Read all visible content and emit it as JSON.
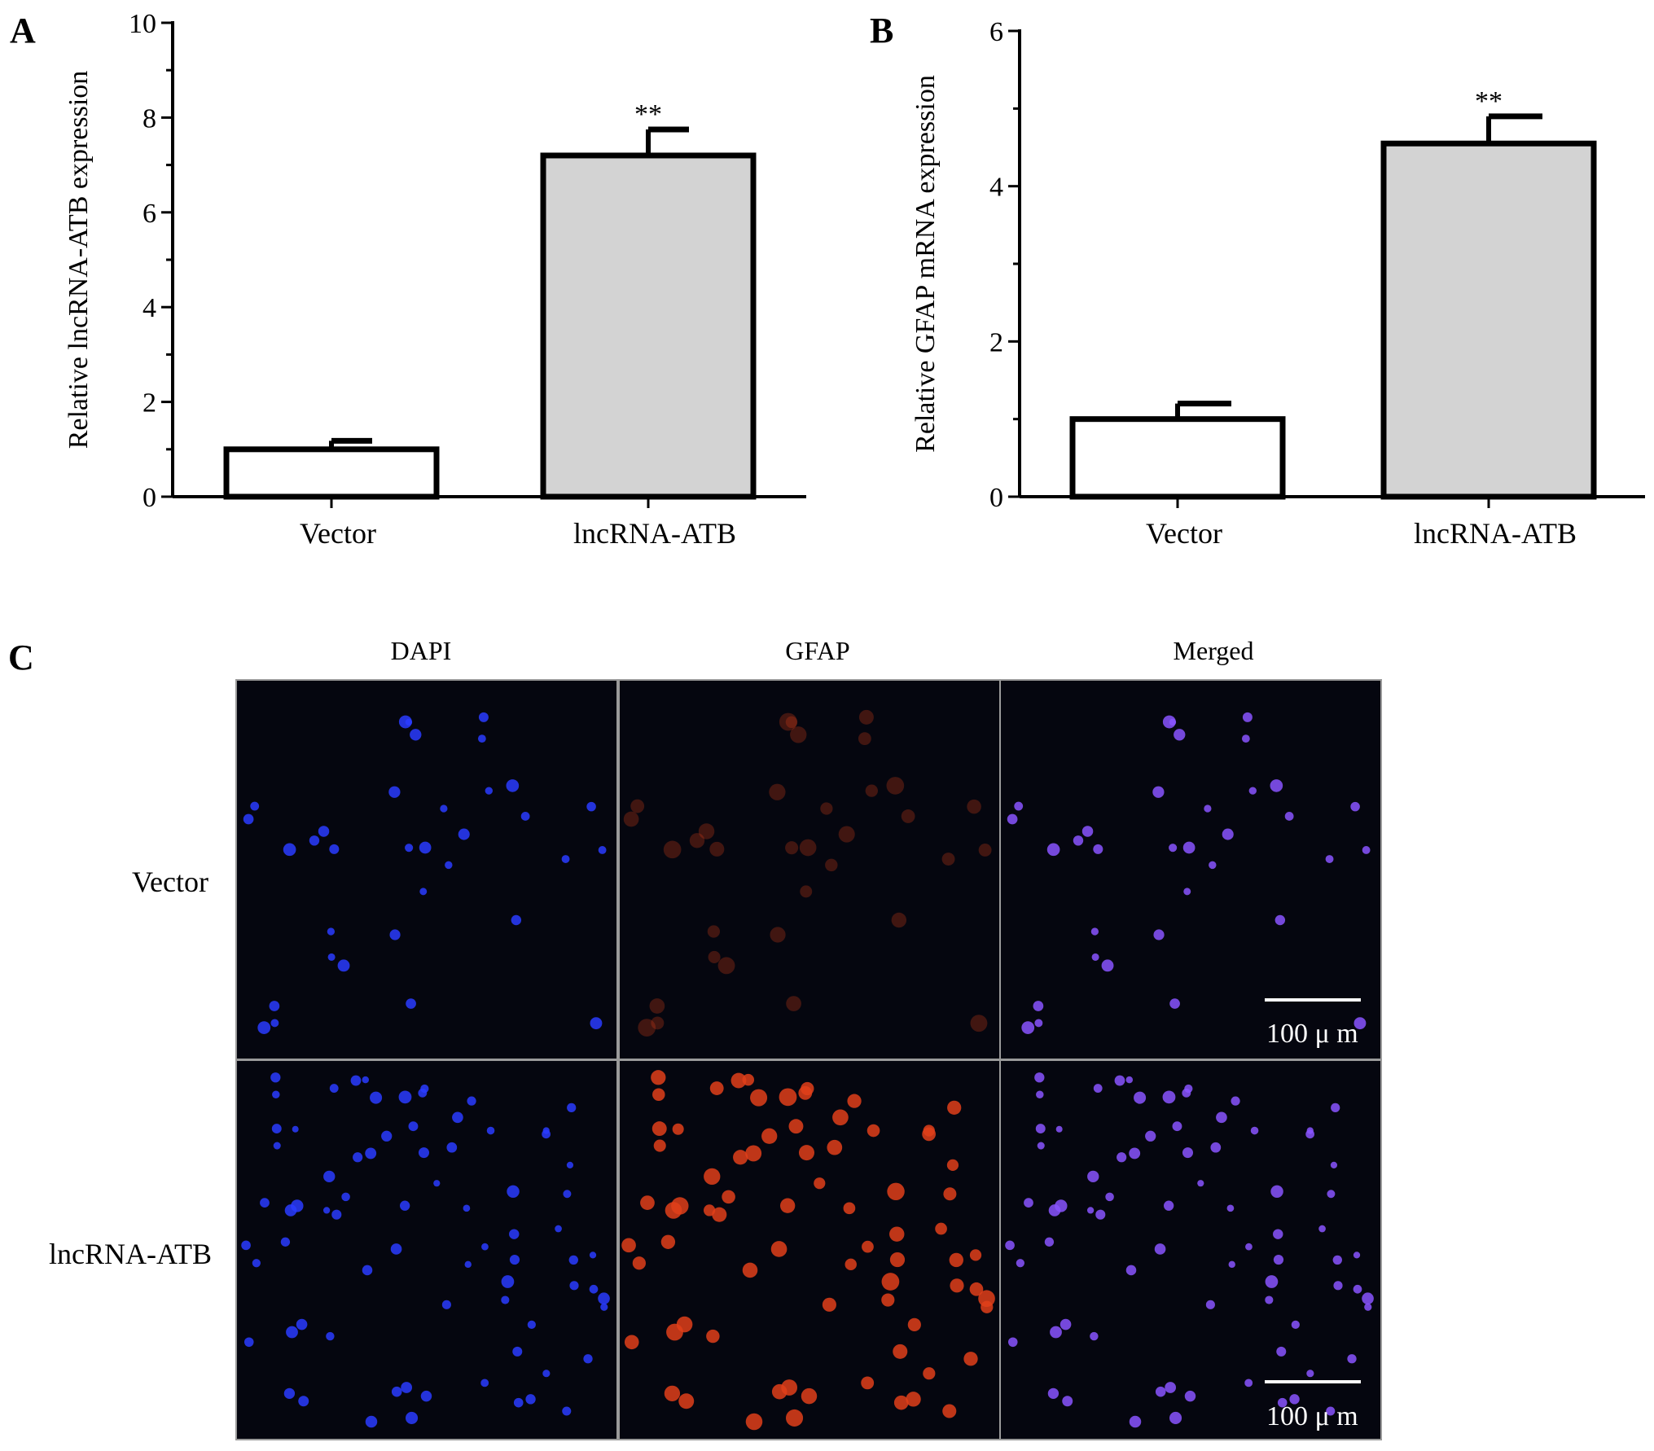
{
  "panels": {
    "a": {
      "letter": "A"
    },
    "b": {
      "letter": "B"
    },
    "c": {
      "letter": "C"
    }
  },
  "chart_data": [
    {
      "id": "A",
      "type": "bar",
      "title": "",
      "xlabel": "",
      "ylabel": "Relative lncRNA-ATB expression",
      "categories": [
        "Vector",
        "lncRNA-ATB"
      ],
      "values": [
        1.0,
        7.2
      ],
      "errors": [
        0.18,
        0.55
      ],
      "significance": [
        "",
        "**"
      ],
      "bar_colors": [
        "#ffffff",
        "#d3d3d3"
      ],
      "ylim": [
        0,
        10
      ],
      "yticks": [
        0,
        2,
        4,
        6,
        8,
        10
      ],
      "yminor_step": 1,
      "grid": false
    },
    {
      "id": "B",
      "type": "bar",
      "title": "",
      "xlabel": "",
      "ylabel": "Relative  GFAP mRNA expression",
      "categories": [
        "Vector",
        "lncRNA-ATB"
      ],
      "values": [
        1.0,
        4.55
      ],
      "errors": [
        0.2,
        0.35
      ],
      "significance": [
        "",
        "**"
      ],
      "bar_colors": [
        "#ffffff",
        "#d3d3d3"
      ],
      "ylim": [
        0,
        6
      ],
      "yticks": [
        0,
        2,
        4,
        6
      ],
      "yminor_step": 1,
      "grid": false
    }
  ],
  "micrographs": {
    "column_labels": [
      "DAPI",
      "GFAP",
      "Merged"
    ],
    "row_labels": [
      "Vector",
      "lncRNA-ATB"
    ],
    "scale_bar_text": "100 μ m",
    "channel_colors": {
      "dapi": "#2a3cff",
      "gfap": "#e0401a",
      "merged": "#8a55ff",
      "background": "#05060f"
    }
  }
}
